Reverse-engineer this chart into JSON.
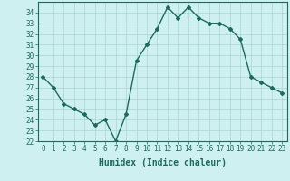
{
  "x": [
    0,
    1,
    2,
    3,
    4,
    5,
    6,
    7,
    8,
    9,
    10,
    11,
    12,
    13,
    14,
    15,
    16,
    17,
    18,
    19,
    20,
    21,
    22,
    23
  ],
  "y": [
    28,
    27,
    25.5,
    25,
    24.5,
    23.5,
    24,
    22,
    24.5,
    29.5,
    31,
    32.5,
    34.5,
    33.5,
    34.5,
    33.5,
    33,
    33,
    32.5,
    31.5,
    28,
    27.5,
    27,
    26.5
  ],
  "line_color": "#1a6b5a",
  "marker": "D",
  "markersize": 2,
  "bg_color": "#cef0f0",
  "grid_color": "#aad4d4",
  "xlabel": "Humidex (Indice chaleur)",
  "xlim": [
    -0.5,
    23.5
  ],
  "ylim": [
    22,
    35
  ],
  "yticks": [
    22,
    23,
    24,
    25,
    26,
    27,
    28,
    29,
    30,
    31,
    32,
    33,
    34
  ],
  "xticks": [
    0,
    1,
    2,
    3,
    4,
    5,
    6,
    7,
    8,
    9,
    10,
    11,
    12,
    13,
    14,
    15,
    16,
    17,
    18,
    19,
    20,
    21,
    22,
    23
  ],
  "tick_color": "#1a6b5a",
  "xlabel_fontsize": 7,
  "tick_fontsize": 5.5,
  "linewidth": 1.0
}
